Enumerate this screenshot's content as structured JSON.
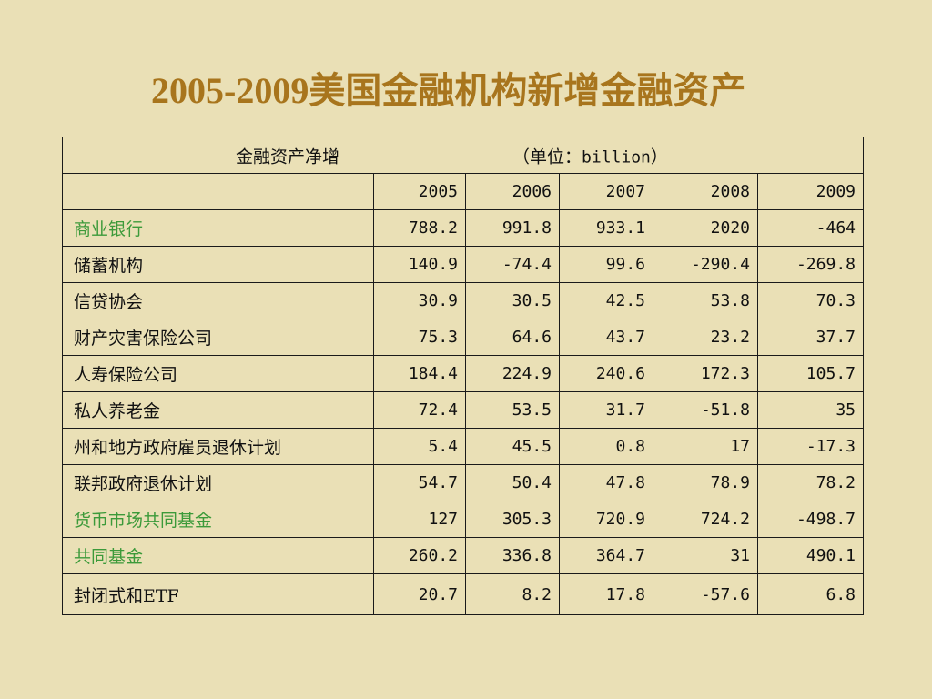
{
  "title": "2005-2009美国金融机构新增金融资产",
  "table": {
    "header_left": "金融资产净增",
    "header_unit_prefix": "（单位：",
    "header_unit_value": "billion",
    "header_unit_suffix": "）",
    "years": [
      "2005",
      "2006",
      "2007",
      "2008",
      "2009"
    ],
    "rows": [
      {
        "label": "商业银行",
        "highlight": true,
        "values": [
          "788.2",
          "991.8",
          "933.1",
          "2020",
          "-464"
        ]
      },
      {
        "label": "储蓄机构",
        "highlight": false,
        "values": [
          "140.9",
          "-74.4",
          "99.6",
          "-290.4",
          "-269.8"
        ]
      },
      {
        "label": "信贷协会",
        "highlight": false,
        "values": [
          "30.9",
          "30.5",
          "42.5",
          "53.8",
          "70.3"
        ]
      },
      {
        "label": "财产灾害保险公司",
        "highlight": false,
        "values": [
          "75.3",
          "64.6",
          "43.7",
          "23.2",
          "37.7"
        ]
      },
      {
        "label": "人寿保险公司",
        "highlight": false,
        "values": [
          "184.4",
          "224.9",
          "240.6",
          "172.3",
          "105.7"
        ]
      },
      {
        "label": "私人养老金",
        "highlight": false,
        "values": [
          "72.4",
          "53.5",
          "31.7",
          "-51.8",
          "35"
        ]
      },
      {
        "label": "州和地方政府雇员退休计划",
        "highlight": false,
        "values": [
          "5.4",
          "45.5",
          "0.8",
          "17",
          "-17.3"
        ]
      },
      {
        "label": "联邦政府退休计划",
        "highlight": false,
        "values": [
          "54.7",
          "50.4",
          "47.8",
          "78.9",
          "78.2"
        ]
      },
      {
        "label": "货币市场共同基金",
        "highlight": true,
        "values": [
          "127",
          "305.3",
          "720.9",
          "724.2",
          "-498.7"
        ]
      },
      {
        "label": "共同基金",
        "highlight": true,
        "values": [
          "260.2",
          "336.8",
          "364.7",
          "31",
          "490.1"
        ]
      },
      {
        "label": "封闭式和ETF",
        "highlight": false,
        "values": [
          "20.7",
          "8.2",
          "17.8",
          "-57.6",
          "6.8"
        ]
      }
    ]
  },
  "colors": {
    "background": "#eae0b6",
    "title": "#a8751d",
    "highlight_label": "#3c9a3a",
    "text": "#111111",
    "border": "#1a1a1a"
  }
}
